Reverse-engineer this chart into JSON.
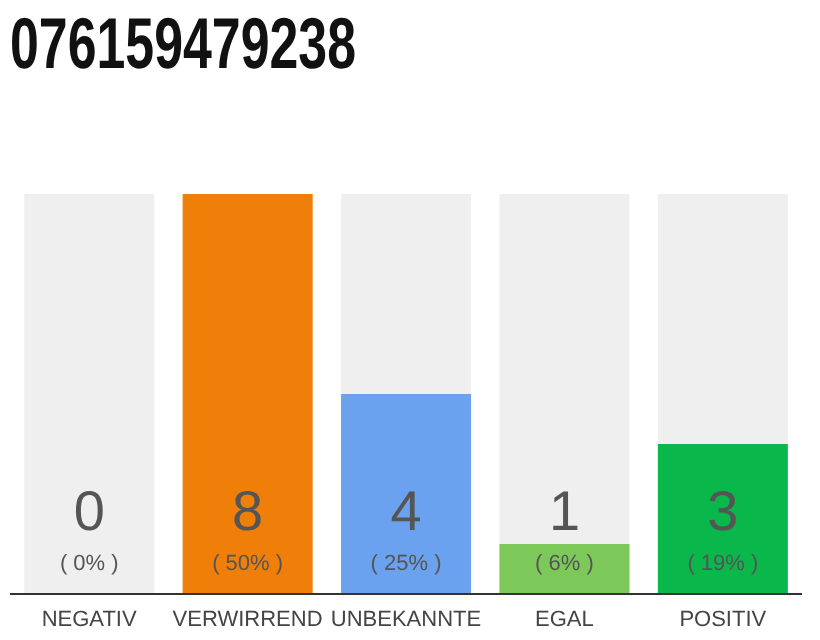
{
  "chart_data": {
    "type": "bar",
    "title": "076159479238",
    "categories": [
      "NEGATIV",
      "VERWIRREND",
      "UNBEKANNTE",
      "EGAL",
      "POSITIV"
    ],
    "values": [
      0,
      8,
      4,
      1,
      3
    ],
    "colors": [
      "#9e9e9e",
      "#f07f0a",
      "#6aa2ef",
      "#7cc95a",
      "#0ab74a"
    ],
    "data_labels": true,
    "annotations": [
      "( 0% )",
      "( 50% )",
      "( 25% )",
      "( 6% )",
      "( 19% )"
    ],
    "grid": false,
    "legend": false
  }
}
